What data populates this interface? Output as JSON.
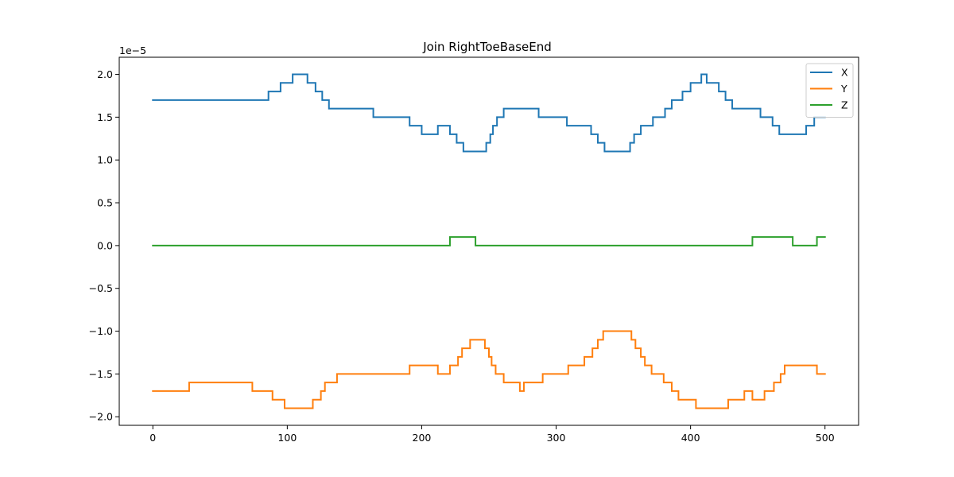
{
  "chart_data": {
    "type": "line",
    "title": "Join RightToeBaseEnd",
    "xlabel": "",
    "ylabel": "",
    "y_offset_label": "1e−5",
    "xlim": [
      -25,
      525
    ],
    "ylim": [
      -2.1,
      2.2
    ],
    "x_ticks": [
      0,
      100,
      200,
      300,
      400,
      500
    ],
    "x_tick_labels": [
      "0",
      "100",
      "200",
      "300",
      "400",
      "500"
    ],
    "y_ticks": [
      -2.0,
      -1.5,
      -1.0,
      -0.5,
      0.0,
      0.5,
      1.0,
      1.5,
      2.0
    ],
    "y_tick_labels": [
      "−2.0",
      "−1.5",
      "−1.0",
      "−0.5",
      "0.0",
      "0.5",
      "1.0",
      "1.5",
      "2.0"
    ],
    "grid": false,
    "legend_position": "top-right",
    "series": [
      {
        "name": "X",
        "color": "#1f77b4",
        "points": [
          [
            0,
            1.7
          ],
          [
            86,
            1.7
          ],
          [
            86,
            1.8
          ],
          [
            95,
            1.8
          ],
          [
            95,
            1.9
          ],
          [
            104,
            1.9
          ],
          [
            104,
            2.0
          ],
          [
            115,
            2.0
          ],
          [
            115,
            1.9
          ],
          [
            121,
            1.9
          ],
          [
            121,
            1.8
          ],
          [
            126,
            1.8
          ],
          [
            126,
            1.7
          ],
          [
            131,
            1.7
          ],
          [
            131,
            1.6
          ],
          [
            164,
            1.6
          ],
          [
            164,
            1.5
          ],
          [
            191,
            1.5
          ],
          [
            191,
            1.4
          ],
          [
            200,
            1.4
          ],
          [
            200,
            1.3
          ],
          [
            212,
            1.3
          ],
          [
            212,
            1.4
          ],
          [
            221,
            1.4
          ],
          [
            221,
            1.3
          ],
          [
            226,
            1.3
          ],
          [
            226,
            1.2
          ],
          [
            231,
            1.2
          ],
          [
            231,
            1.1
          ],
          [
            248,
            1.1
          ],
          [
            248,
            1.2
          ],
          [
            251,
            1.2
          ],
          [
            251,
            1.3
          ],
          [
            253,
            1.3
          ],
          [
            253,
            1.4
          ],
          [
            256,
            1.4
          ],
          [
            256,
            1.5
          ],
          [
            261,
            1.5
          ],
          [
            261,
            1.6
          ],
          [
            287,
            1.6
          ],
          [
            287,
            1.5
          ],
          [
            308,
            1.5
          ],
          [
            308,
            1.4
          ],
          [
            326,
            1.4
          ],
          [
            326,
            1.3
          ],
          [
            331,
            1.3
          ],
          [
            331,
            1.2
          ],
          [
            336,
            1.2
          ],
          [
            336,
            1.1
          ],
          [
            355,
            1.1
          ],
          [
            355,
            1.2
          ],
          [
            358,
            1.2
          ],
          [
            358,
            1.3
          ],
          [
            363,
            1.3
          ],
          [
            363,
            1.4
          ],
          [
            372,
            1.4
          ],
          [
            372,
            1.5
          ],
          [
            381,
            1.5
          ],
          [
            381,
            1.6
          ],
          [
            386,
            1.6
          ],
          [
            386,
            1.7
          ],
          [
            394,
            1.7
          ],
          [
            394,
            1.8
          ],
          [
            400,
            1.8
          ],
          [
            400,
            1.9
          ],
          [
            408,
            1.9
          ],
          [
            408,
            2.0
          ],
          [
            412,
            2.0
          ],
          [
            412,
            1.9
          ],
          [
            421,
            1.9
          ],
          [
            421,
            1.8
          ],
          [
            426,
            1.8
          ],
          [
            426,
            1.7
          ],
          [
            431,
            1.7
          ],
          [
            431,
            1.6
          ],
          [
            452,
            1.6
          ],
          [
            452,
            1.5
          ],
          [
            461,
            1.5
          ],
          [
            461,
            1.4
          ],
          [
            466,
            1.4
          ],
          [
            466,
            1.3
          ],
          [
            486,
            1.3
          ],
          [
            486,
            1.4
          ],
          [
            492,
            1.4
          ],
          [
            492,
            1.5
          ],
          [
            500,
            1.5
          ]
        ]
      },
      {
        "name": "Y",
        "color": "#ff7f0e",
        "points": [
          [
            0,
            -1.7
          ],
          [
            27,
            -1.7
          ],
          [
            27,
            -1.6
          ],
          [
            74,
            -1.6
          ],
          [
            74,
            -1.7
          ],
          [
            89,
            -1.7
          ],
          [
            89,
            -1.8
          ],
          [
            98,
            -1.8
          ],
          [
            98,
            -1.9
          ],
          [
            119,
            -1.9
          ],
          [
            119,
            -1.8
          ],
          [
            125,
            -1.8
          ],
          [
            125,
            -1.7
          ],
          [
            128,
            -1.7
          ],
          [
            128,
            -1.6
          ],
          [
            137,
            -1.6
          ],
          [
            137,
            -1.5
          ],
          [
            191,
            -1.5
          ],
          [
            191,
            -1.4
          ],
          [
            212,
            -1.4
          ],
          [
            212,
            -1.5
          ],
          [
            221,
            -1.5
          ],
          [
            221,
            -1.4
          ],
          [
            227,
            -1.4
          ],
          [
            227,
            -1.3
          ],
          [
            230,
            -1.3
          ],
          [
            230,
            -1.2
          ],
          [
            236,
            -1.2
          ],
          [
            236,
            -1.1
          ],
          [
            247,
            -1.1
          ],
          [
            247,
            -1.2
          ],
          [
            250,
            -1.2
          ],
          [
            250,
            -1.3
          ],
          [
            252,
            -1.3
          ],
          [
            252,
            -1.4
          ],
          [
            255,
            -1.4
          ],
          [
            255,
            -1.5
          ],
          [
            261,
            -1.5
          ],
          [
            261,
            -1.6
          ],
          [
            273,
            -1.6
          ],
          [
            273,
            -1.7
          ],
          [
            276,
            -1.7
          ],
          [
            276,
            -1.6
          ],
          [
            290,
            -1.6
          ],
          [
            290,
            -1.5
          ],
          [
            309,
            -1.5
          ],
          [
            309,
            -1.4
          ],
          [
            321,
            -1.4
          ],
          [
            321,
            -1.3
          ],
          [
            327,
            -1.3
          ],
          [
            327,
            -1.2
          ],
          [
            331,
            -1.2
          ],
          [
            331,
            -1.1
          ],
          [
            335,
            -1.1
          ],
          [
            335,
            -1.0
          ],
          [
            356,
            -1.0
          ],
          [
            356,
            -1.1
          ],
          [
            359,
            -1.1
          ],
          [
            359,
            -1.2
          ],
          [
            363,
            -1.2
          ],
          [
            363,
            -1.3
          ],
          [
            366,
            -1.3
          ],
          [
            366,
            -1.4
          ],
          [
            371,
            -1.4
          ],
          [
            371,
            -1.5
          ],
          [
            380,
            -1.5
          ],
          [
            380,
            -1.6
          ],
          [
            386,
            -1.6
          ],
          [
            386,
            -1.7
          ],
          [
            391,
            -1.7
          ],
          [
            391,
            -1.8
          ],
          [
            404,
            -1.8
          ],
          [
            404,
            -1.9
          ],
          [
            428,
            -1.9
          ],
          [
            428,
            -1.8
          ],
          [
            440,
            -1.8
          ],
          [
            440,
            -1.7
          ],
          [
            446,
            -1.7
          ],
          [
            446,
            -1.8
          ],
          [
            455,
            -1.8
          ],
          [
            455,
            -1.7
          ],
          [
            462,
            -1.7
          ],
          [
            462,
            -1.6
          ],
          [
            467,
            -1.6
          ],
          [
            467,
            -1.5
          ],
          [
            470,
            -1.5
          ],
          [
            470,
            -1.4
          ],
          [
            494,
            -1.4
          ],
          [
            494,
            -1.5
          ],
          [
            500,
            -1.5
          ]
        ]
      },
      {
        "name": "Z",
        "color": "#2ca02c",
        "points": [
          [
            0,
            0.0
          ],
          [
            221,
            0.0
          ],
          [
            221,
            0.1
          ],
          [
            240,
            0.1
          ],
          [
            240,
            0.0
          ],
          [
            446,
            0.0
          ],
          [
            446,
            0.1
          ],
          [
            476,
            0.1
          ],
          [
            476,
            0.0
          ],
          [
            494,
            0.0
          ],
          [
            494,
            0.1
          ],
          [
            500,
            0.1
          ]
        ]
      }
    ]
  }
}
